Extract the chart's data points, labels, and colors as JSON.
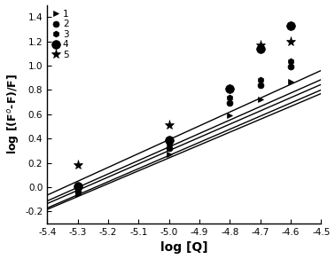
{
  "xlabel": "log [Q]",
  "ylabel": "log [(F$^o$-F)/F]",
  "xlim": [
    -5.4,
    -4.5
  ],
  "ylim": [
    -0.3,
    1.5
  ],
  "xticks": [
    -5.4,
    -5.3,
    -5.2,
    -5.1,
    -5.0,
    -4.9,
    -4.8,
    -4.7,
    -4.6,
    -4.5
  ],
  "yticks": [
    -0.2,
    0.0,
    0.2,
    0.4,
    0.6,
    0.8,
    1.0,
    1.2,
    1.4
  ],
  "series": [
    {
      "label": "1",
      "marker": ">",
      "markersize": 5,
      "points_x": [
        -5.3,
        -5.0,
        -4.8,
        -4.7,
        -4.6
      ],
      "points_y": [
        -0.06,
        0.27,
        0.59,
        0.72,
        0.87
      ],
      "line_slope": 1.06,
      "line_b": 5.54
    },
    {
      "label": "2",
      "marker": "o",
      "markersize": 5,
      "points_x": [
        -5.3,
        -5.0,
        -4.8,
        -4.7,
        -4.6
      ],
      "points_y": [
        -0.04,
        0.32,
        0.69,
        0.84,
        0.99
      ],
      "line_slope": 1.08,
      "line_b": 5.66
    },
    {
      "label": "3",
      "marker": "h",
      "markersize": 5,
      "points_x": [
        -5.3,
        -5.0,
        -4.8,
        -4.7,
        -4.6
      ],
      "points_y": [
        -0.02,
        0.36,
        0.74,
        0.88,
        1.04
      ],
      "line_slope": 1.09,
      "line_b": 5.75
    },
    {
      "label": "4",
      "marker": "o",
      "markersize": 7,
      "points_x": [
        -5.3,
        -5.0,
        -4.8,
        -4.7,
        -4.6
      ],
      "points_y": [
        0.01,
        0.39,
        0.81,
        1.14,
        1.33
      ],
      "line_slope": 1.11,
      "line_b": 5.88
    },
    {
      "label": "5",
      "marker": "*",
      "markersize": 8,
      "points_x": [
        -5.3,
        -5.0,
        -4.7,
        -4.6
      ],
      "points_y": [
        0.18,
        0.51,
        1.17,
        1.2
      ],
      "line_slope": 1.14,
      "line_b": 6.09
    }
  ]
}
